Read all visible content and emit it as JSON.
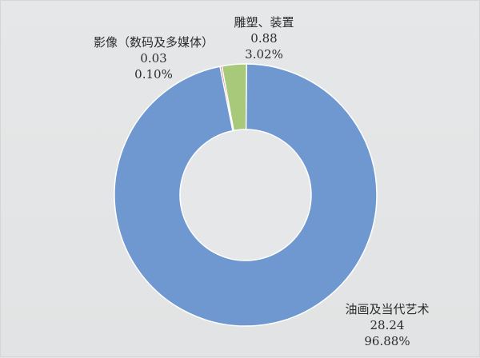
{
  "chart_data": {
    "type": "pie",
    "donut": true,
    "title": "",
    "slices": [
      {
        "label": "油画及当代艺术",
        "value": 28.24,
        "percent": "96.88%",
        "color": "#6f98d1"
      },
      {
        "label": "影像（数码及多媒体）",
        "value": 0.03,
        "percent": "0.10%",
        "color": "#c9535a"
      },
      {
        "label": "雕塑、装置",
        "value": 0.88,
        "percent": "3.02%",
        "color": "#a8c97a"
      }
    ],
    "slice_order_clockwise_from_top": [
      "油画及当代艺术",
      "影像（数码及多媒体）",
      "雕塑、装置"
    ],
    "labels": [
      {
        "name": "油画及当代艺术",
        "value": "28.24",
        "percent": "96.88%"
      },
      {
        "name": "影像（数码及多媒体）",
        "value": "0.03",
        "percent": "0.10%"
      },
      {
        "name": "雕塑、装置",
        "value": "0.88",
        "percent": "3.02%"
      }
    ],
    "legend": "none"
  }
}
